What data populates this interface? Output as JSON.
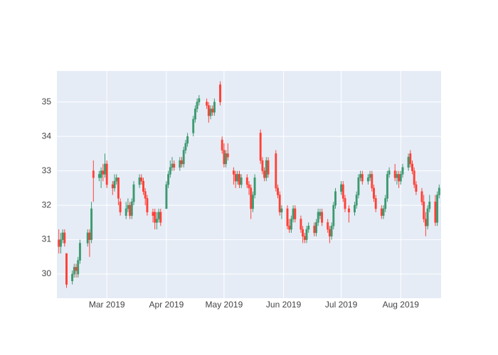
{
  "chart_data": {
    "type": "candlestick",
    "x": [
      "2019-02-04",
      "2019-02-05",
      "2019-02-06",
      "2019-02-07",
      "2019-02-08",
      "2019-02-11",
      "2019-02-12",
      "2019-02-13",
      "2019-02-14",
      "2019-02-15",
      "2019-02-19",
      "2019-02-20",
      "2019-02-21",
      "2019-02-22",
      "2019-02-25",
      "2019-02-26",
      "2019-02-27",
      "2019-02-28",
      "2019-03-01",
      "2019-03-04",
      "2019-03-05",
      "2019-03-06",
      "2019-03-07",
      "2019-03-08",
      "2019-03-11",
      "2019-03-12",
      "2019-03-13",
      "2019-03-14",
      "2019-03-15",
      "2019-03-18",
      "2019-03-19",
      "2019-03-20",
      "2019-03-21",
      "2019-03-22",
      "2019-03-25",
      "2019-03-26",
      "2019-03-27",
      "2019-03-28",
      "2019-03-29",
      "2019-04-01",
      "2019-04-02",
      "2019-04-03",
      "2019-04-04",
      "2019-04-05",
      "2019-04-08",
      "2019-04-09",
      "2019-04-10",
      "2019-04-11",
      "2019-04-12",
      "2019-04-15",
      "2019-04-16",
      "2019-04-17",
      "2019-04-18",
      "2019-04-22",
      "2019-04-23",
      "2019-04-24",
      "2019-04-25",
      "2019-04-26",
      "2019-04-29",
      "2019-04-30",
      "2019-05-01",
      "2019-05-02",
      "2019-05-03",
      "2019-05-06",
      "2019-05-07",
      "2019-05-08",
      "2019-05-09",
      "2019-05-10",
      "2019-05-13",
      "2019-05-14",
      "2019-05-15",
      "2019-05-16",
      "2019-05-17",
      "2019-05-20",
      "2019-05-21",
      "2019-05-22",
      "2019-05-23",
      "2019-05-24",
      "2019-05-28",
      "2019-05-29",
      "2019-05-30",
      "2019-05-31",
      "2019-06-03",
      "2019-06-04",
      "2019-06-05",
      "2019-06-06",
      "2019-06-07",
      "2019-06-10",
      "2019-06-11",
      "2019-06-12",
      "2019-06-13",
      "2019-06-14",
      "2019-06-17",
      "2019-06-18",
      "2019-06-19",
      "2019-06-20",
      "2019-06-21",
      "2019-06-24",
      "2019-06-25",
      "2019-06-26",
      "2019-06-27",
      "2019-06-28",
      "2019-07-01",
      "2019-07-02",
      "2019-07-03",
      "2019-07-05",
      "2019-07-08",
      "2019-07-09",
      "2019-07-10",
      "2019-07-11",
      "2019-07-12",
      "2019-07-15",
      "2019-07-16",
      "2019-07-17",
      "2019-07-18",
      "2019-07-19",
      "2019-07-22",
      "2019-07-23",
      "2019-07-24",
      "2019-07-25",
      "2019-07-26",
      "2019-07-29",
      "2019-07-30",
      "2019-07-31",
      "2019-08-01",
      "2019-08-02",
      "2019-08-05",
      "2019-08-06",
      "2019-08-07",
      "2019-08-08",
      "2019-08-09",
      "2019-08-12",
      "2019-08-13",
      "2019-08-14",
      "2019-08-15",
      "2019-08-16",
      "2019-08-19",
      "2019-08-20",
      "2019-08-21"
    ],
    "open": [
      31.0,
      30.8,
      31.0,
      31.2,
      30.6,
      29.8,
      30.0,
      30.2,
      30.0,
      30.4,
      30.9,
      31.2,
      31.0,
      33.0,
      32.8,
      32.8,
      33.0,
      32.9,
      33.2,
      32.6,
      32.5,
      32.7,
      32.8,
      32.1,
      31.7,
      31.9,
      32.0,
      31.7,
      32.1,
      32.6,
      32.8,
      32.7,
      32.4,
      32.2,
      31.8,
      31.8,
      31.5,
      31.6,
      31.8,
      31.9,
      32.6,
      32.9,
      33.1,
      33.2,
      33.1,
      33.3,
      33.2,
      33.6,
      33.8,
      34.1,
      34.5,
      34.8,
      35.0,
      35.0,
      34.9,
      34.6,
      34.8,
      34.7,
      35.5,
      33.9,
      33.6,
      33.2,
      33.5,
      33.0,
      32.9,
      32.7,
      32.9,
      32.6,
      32.8,
      32.6,
      32.5,
      31.9,
      32.3,
      34.1,
      33.3,
      33.0,
      32.8,
      33.3,
      33.5,
      32.5,
      32.3,
      31.8,
      31.9,
      31.4,
      31.3,
      31.6,
      31.9,
      31.6,
      31.3,
      31.1,
      31.0,
      31.3,
      31.4,
      31.2,
      31.5,
      31.7,
      31.8,
      31.5,
      31.3,
      31.1,
      31.4,
      32.0,
      32.4,
      32.6,
      32.2,
      31.9,
      31.8,
      32.0,
      32.3,
      32.8,
      32.9,
      32.7,
      32.8,
      32.9,
      32.5,
      32.2,
      31.9,
      31.7,
      31.9,
      32.2,
      32.9,
      33.0,
      32.8,
      32.9,
      32.7,
      32.9,
      33.1,
      33.5,
      33.2,
      33.0,
      32.6,
      32.4,
      32.1,
      31.6,
      31.4,
      31.9,
      32.1,
      31.5,
      32.3
    ],
    "high": [
      31.3,
      31.2,
      31.3,
      31.3,
      30.6,
      30.1,
      30.3,
      30.3,
      30.5,
      31.0,
      31.3,
      31.3,
      32.1,
      33.3,
      33.0,
      33.1,
      33.2,
      33.5,
      33.3,
      32.7,
      32.9,
      32.9,
      32.8,
      32.2,
      32.1,
      32.2,
      32.1,
      32.2,
      32.7,
      32.9,
      32.9,
      32.8,
      32.5,
      32.3,
      31.9,
      31.9,
      31.8,
      31.9,
      31.9,
      32.7,
      33.0,
      33.3,
      33.4,
      33.3,
      33.4,
      33.4,
      33.7,
      33.9,
      34.1,
      34.6,
      34.9,
      35.1,
      35.2,
      35.1,
      35.0,
      34.9,
      34.9,
      35.1,
      35.6,
      34.0,
      33.8,
      33.6,
      33.8,
      33.1,
      33.0,
      33.0,
      33.0,
      32.9,
      32.9,
      32.7,
      32.6,
      32.4,
      32.9,
      34.2,
      33.4,
      33.1,
      33.4,
      33.4,
      33.6,
      32.6,
      32.4,
      32.0,
      32.0,
      31.6,
      31.7,
      32.0,
      32.0,
      31.7,
      31.4,
      31.2,
      31.4,
      31.5,
      31.5,
      31.6,
      31.9,
      31.9,
      31.9,
      31.6,
      31.4,
      31.5,
      32.1,
      32.5,
      32.7,
      32.7,
      32.3,
      32.0,
      32.1,
      32.4,
      32.9,
      33.0,
      33.0,
      32.9,
      33.0,
      33.0,
      32.6,
      32.3,
      32.0,
      32.0,
      32.3,
      33.0,
      33.1,
      33.2,
      33.0,
      33.0,
      33.0,
      33.2,
      33.5,
      33.6,
      33.3,
      33.1,
      32.7,
      32.5,
      32.3,
      31.8,
      32.0,
      32.3,
      32.3,
      32.4,
      32.6
    ],
    "low": [
      30.6,
      30.6,
      30.9,
      30.8,
      29.6,
      29.7,
      29.9,
      29.9,
      29.9,
      30.3,
      30.8,
      30.5,
      30.9,
      32.1,
      32.7,
      32.5,
      32.7,
      32.8,
      32.5,
      32.3,
      32.4,
      32.6,
      32.0,
      31.7,
      31.6,
      31.8,
      31.6,
      31.6,
      32.0,
      32.5,
      32.6,
      32.3,
      32.0,
      31.7,
      31.5,
      31.3,
      31.3,
      31.5,
      31.4,
      31.9,
      32.5,
      32.8,
      33.0,
      33.0,
      33.0,
      33.1,
      33.1,
      33.5,
      33.7,
      34.0,
      34.4,
      34.7,
      34.9,
      34.8,
      34.4,
      34.5,
      34.6,
      34.6,
      34.9,
      33.5,
      33.1,
      33.1,
      33.3,
      32.6,
      32.5,
      32.6,
      32.5,
      32.5,
      32.5,
      32.3,
      31.6,
      31.8,
      32.2,
      33.2,
      32.9,
      32.7,
      32.7,
      32.8,
      32.4,
      32.2,
      31.7,
      31.6,
      31.3,
      31.2,
      31.2,
      31.5,
      31.5,
      31.2,
      30.9,
      30.9,
      30.9,
      31.2,
      31.1,
      31.1,
      31.4,
      31.6,
      31.4,
      31.2,
      30.9,
      31.0,
      31.3,
      31.9,
      32.3,
      32.1,
      31.8,
      31.5,
      31.7,
      31.9,
      32.2,
      32.7,
      32.6,
      32.6,
      32.7,
      32.4,
      32.1,
      31.8,
      31.6,
      31.6,
      31.8,
      32.1,
      32.8,
      32.7,
      32.6,
      32.5,
      32.6,
      32.8,
      33.0,
      33.1,
      32.9,
      32.5,
      32.3,
      32.0,
      31.5,
      31.1,
      31.3,
      31.8,
      31.4,
      31.4,
      32.2
    ],
    "close": [
      30.8,
      31.0,
      31.2,
      30.9,
      29.7,
      30.0,
      30.2,
      30.1,
      30.4,
      30.9,
      31.2,
      31.0,
      31.9,
      32.8,
      32.9,
      33.0,
      32.9,
      33.2,
      32.6,
      32.5,
      32.7,
      32.8,
      32.2,
      31.8,
      31.9,
      32.0,
      31.7,
      32.1,
      32.6,
      32.8,
      32.7,
      32.4,
      32.2,
      31.8,
      31.7,
      31.5,
      31.6,
      31.8,
      31.5,
      32.6,
      32.9,
      33.1,
      33.2,
      33.1,
      33.3,
      33.2,
      33.6,
      33.8,
      34.0,
      34.5,
      34.8,
      35.0,
      35.1,
      34.9,
      34.6,
      34.8,
      34.7,
      35.0,
      35.0,
      33.6,
      33.2,
      33.5,
      33.4,
      32.9,
      32.7,
      32.9,
      32.6,
      32.8,
      32.6,
      32.5,
      31.9,
      32.3,
      32.8,
      33.3,
      33.0,
      32.8,
      33.3,
      32.9,
      32.5,
      32.3,
      31.8,
      31.9,
      31.4,
      31.3,
      31.6,
      31.9,
      31.6,
      31.3,
      31.1,
      31.0,
      31.3,
      31.4,
      31.2,
      31.5,
      31.8,
      31.8,
      31.5,
      31.3,
      31.1,
      31.4,
      32.0,
      32.4,
      32.6,
      32.2,
      31.9,
      31.8,
      32.0,
      32.3,
      32.8,
      32.9,
      32.7,
      32.8,
      32.9,
      32.5,
      32.2,
      31.9,
      31.7,
      31.9,
      32.2,
      32.9,
      33.0,
      32.8,
      32.9,
      32.7,
      32.9,
      33.1,
      33.4,
      33.2,
      33.0,
      32.6,
      32.4,
      32.1,
      31.6,
      31.4,
      31.9,
      32.1,
      31.5,
      32.3,
      32.5
    ],
    "increasing_color": "#3d9970",
    "decreasing_color": "#ff4136",
    "xlim": [
      "2019-02-03",
      "2019-08-22"
    ],
    "xticks": [
      {
        "value": "2019-03-01",
        "label": "Mar 2019"
      },
      {
        "value": "2019-04-01",
        "label": "Apr 2019"
      },
      {
        "value": "2019-05-01",
        "label": "May 2019"
      },
      {
        "value": "2019-06-01",
        "label": "Jun 2019"
      },
      {
        "value": "2019-07-01",
        "label": "Jul 2019"
      },
      {
        "value": "2019-08-01",
        "label": "Aug 2019"
      }
    ],
    "ylim": [
      29.3,
      35.9
    ],
    "yticks": [
      30,
      31,
      32,
      33,
      34,
      35
    ],
    "grid": true
  }
}
